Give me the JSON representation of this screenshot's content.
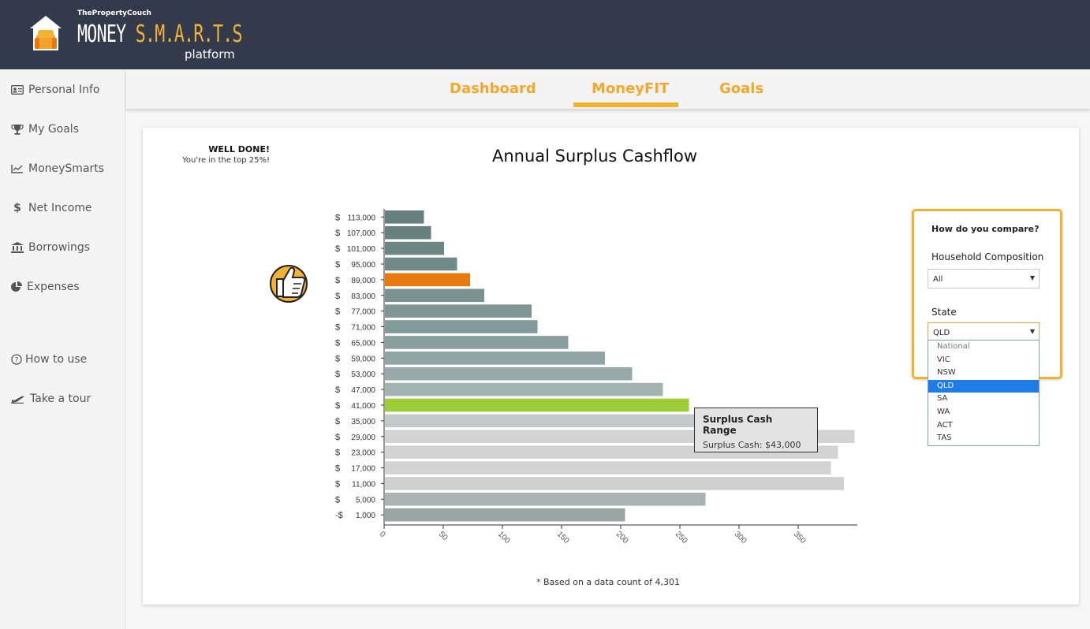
{
  "brand": {
    "company": "ThePropertyCouch",
    "product_prefix": "Money",
    "product_highlight": "S.M.A.R.T.S",
    "product_suffix": "platform",
    "house_icon": "house-couch-logo-icon"
  },
  "sidebar": {
    "items": [
      {
        "label": "Personal Info",
        "icon": "id-card-icon"
      },
      {
        "label": "My Goals",
        "icon": "trophy-icon"
      },
      {
        "label": "MoneySmarts",
        "icon": "line-chart-icon"
      },
      {
        "label": "Net Income",
        "icon": "dollar-icon"
      },
      {
        "label": "Borrowings",
        "icon": "bank-icon"
      },
      {
        "label": "Expenses",
        "icon": "pie-chart-icon"
      }
    ],
    "help": [
      {
        "label": "How to use",
        "icon": "question-circle-icon"
      },
      {
        "label": "Take a tour",
        "icon": "plane-icon"
      }
    ]
  },
  "tabs": {
    "items": [
      "Dashboard",
      "MoneyFIT",
      "Goals"
    ],
    "active": "MoneyFIT"
  },
  "card": {
    "title": "Annual Surplus Cashflow",
    "footnote": "* Based on a data count of 4,301"
  },
  "achievement": {
    "title": "WELL DONE!",
    "subtitle": "You're in the top 25%!",
    "icon": "thumbs-up-icon"
  },
  "tooltip": {
    "title": "Surplus Cash Range",
    "value": "Surplus Cash: $43,000"
  },
  "compare": {
    "heading": "How do you compare?",
    "household_label": "Household Composition",
    "household_value": "All",
    "state_label": "State",
    "state_value": "QLD",
    "state_options": [
      "National",
      "VIC",
      "NSW",
      "QLD",
      "SA",
      "WA",
      "ACT",
      "TAS"
    ],
    "selected_option": "QLD"
  },
  "colors": {
    "header_bg": "#323a4b",
    "accent": "#f2b22f",
    "tab_text": "#f2a82a",
    "user_bar": "#9ccc36",
    "top_bar": "#e8790c",
    "dropdown_selected": "#1e7be8"
  },
  "chart_data": {
    "type": "bar",
    "orientation": "horizontal",
    "title": "Annual Surplus Cashflow",
    "currency_prefixes": [
      "$",
      "$",
      "$",
      "$",
      "$",
      "$",
      "$",
      "$",
      "$",
      "$",
      "$",
      "$",
      "$",
      "$",
      "$",
      "$",
      "$",
      "$",
      "$",
      "-$"
    ],
    "categories": [
      "113,000",
      "107,000",
      "101,000",
      "95,000",
      "89,000",
      "83,000",
      "77,000",
      "71,000",
      "65,000",
      "59,000",
      "53,000",
      "47,000",
      "41,000",
      "35,000",
      "29,000",
      "23,000",
      "17,000",
      "11,000",
      "5,000",
      "1,000"
    ],
    "values": [
      33,
      39,
      50,
      61,
      72,
      84,
      124,
      129,
      155,
      186,
      209,
      235,
      257,
      271,
      397,
      383,
      377,
      388,
      271,
      203
    ],
    "bar_colors": [
      "#677f7f",
      "#677f7f",
      "#6e8686",
      "#718a89",
      "#e8790c",
      "#7a9291",
      "#7e9695",
      "#829a99",
      "#8aa09f",
      "#90a5a4",
      "#97aaa9",
      "#a2b2b1",
      "#9ccc36",
      "#c3c8c8",
      "#d3d3d3",
      "#d3d3d3",
      "#d3d3d3",
      "#d0d0d0",
      "#a8b3b2",
      "#99a6a5"
    ],
    "highlight": {
      "category": "41,000",
      "label": "Surplus Cash Range"
    },
    "xlim": [
      0,
      400
    ],
    "xticks": [
      0,
      50,
      100,
      150,
      200,
      250,
      300,
      350
    ],
    "grid": false
  }
}
